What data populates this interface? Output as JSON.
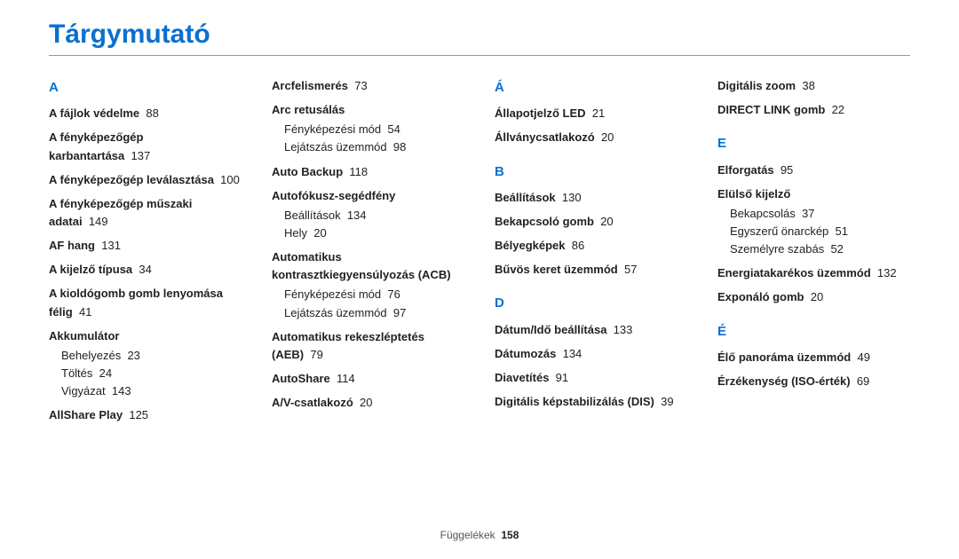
{
  "title": "Tárgymutató",
  "columns": [
    [
      {
        "type": "letter",
        "text": "A"
      },
      {
        "type": "entry",
        "term": "A fájlok védelme",
        "page": "88"
      },
      {
        "type": "entry",
        "term": "A fényképezőgép karbantartása",
        "page": "137"
      },
      {
        "type": "entry",
        "term": "A fényképezőgép leválasztása",
        "page": "100"
      },
      {
        "type": "entry",
        "term": "A fényképezőgép műszaki adatai",
        "page": "149"
      },
      {
        "type": "entry",
        "term": "AF hang",
        "page": "131"
      },
      {
        "type": "entry",
        "term": "A kijelző típusa",
        "page": "34"
      },
      {
        "type": "entry",
        "term": "A kioldógomb gomb lenyomása félig",
        "page": "41"
      },
      {
        "type": "entry",
        "term": "Akkumulátor",
        "subs": [
          {
            "term": "Behelyezés",
            "page": "23"
          },
          {
            "term": "Töltés",
            "page": "24"
          },
          {
            "term": "Vigyázat",
            "page": "143"
          }
        ]
      },
      {
        "type": "entry",
        "term": "AllShare Play",
        "page": "125"
      }
    ],
    [
      {
        "type": "entry",
        "term": "Arcfelismerés",
        "page": "73"
      },
      {
        "type": "entry",
        "term": "Arc retusálás",
        "subs": [
          {
            "term": "Fényképezési mód",
            "page": "54"
          },
          {
            "term": "Lejátszás üzemmód",
            "page": "98"
          }
        ]
      },
      {
        "type": "entry",
        "term": "Auto Backup",
        "page": "118"
      },
      {
        "type": "entry",
        "term": "Autofókusz-segédfény",
        "subs": [
          {
            "term": "Beállítások",
            "page": "134"
          },
          {
            "term": "Hely",
            "page": "20"
          }
        ]
      },
      {
        "type": "entry",
        "term": "Automatikus kontrasztkiegyensúlyozás (ACB)",
        "subs": [
          {
            "term": "Fényképezési mód",
            "page": "76"
          },
          {
            "term": "Lejátszás üzemmód",
            "page": "97"
          }
        ]
      },
      {
        "type": "entry",
        "term": "Automatikus rekeszléptetés (AEB)",
        "page": "79"
      },
      {
        "type": "entry",
        "term": "AutoShare",
        "page": "114"
      },
      {
        "type": "entry",
        "term": "A/V-csatlakozó",
        "page": "20"
      }
    ],
    [
      {
        "type": "letter",
        "text": "Á"
      },
      {
        "type": "entry",
        "term": "Állapotjelző LED",
        "page": "21"
      },
      {
        "type": "entry",
        "term": "Állványcsatlakozó",
        "page": "20"
      },
      {
        "type": "letter",
        "text": "B",
        "spaced": true
      },
      {
        "type": "entry",
        "term": "Beállítások",
        "page": "130"
      },
      {
        "type": "entry",
        "term": "Bekapcsoló gomb",
        "page": "20"
      },
      {
        "type": "entry",
        "term": "Bélyegképek",
        "page": "86"
      },
      {
        "type": "entry",
        "term": "Bűvös keret üzemmód",
        "page": "57"
      },
      {
        "type": "letter",
        "text": "D",
        "spaced": true
      },
      {
        "type": "entry",
        "term": "Dátum/Idő beállítása",
        "page": "133"
      },
      {
        "type": "entry",
        "term": "Dátumozás",
        "page": "134"
      },
      {
        "type": "entry",
        "term": "Diavetítés",
        "page": "91"
      },
      {
        "type": "entry",
        "term": "Digitális képstabilizálás (DIS)",
        "page": "39"
      }
    ],
    [
      {
        "type": "entry",
        "term": "Digitális zoom",
        "page": "38"
      },
      {
        "type": "entry",
        "term": "DIRECT LINK gomb",
        "page": "22"
      },
      {
        "type": "letter",
        "text": "E",
        "spaced": true
      },
      {
        "type": "entry",
        "term": "Elforgatás",
        "page": "95"
      },
      {
        "type": "entry",
        "term": "Elülső kijelző",
        "subs": [
          {
            "term": "Bekapcsolás",
            "page": "37"
          },
          {
            "term": "Egyszerű önarckép",
            "page": "51"
          },
          {
            "term": "Személyre szabás",
            "page": "52"
          }
        ]
      },
      {
        "type": "entry",
        "term": "Energiatakarékos üzemmód",
        "page": "132"
      },
      {
        "type": "entry",
        "term": "Exponáló gomb",
        "page": "20"
      },
      {
        "type": "letter",
        "text": "É",
        "spaced": true
      },
      {
        "type": "entry",
        "term": "Élő panoráma üzemmód",
        "page": "49"
      },
      {
        "type": "entry",
        "term": "Érzékenység (ISO-érték)",
        "page": "69"
      }
    ]
  ],
  "footer": {
    "label": "Függelékek",
    "page": "158"
  }
}
